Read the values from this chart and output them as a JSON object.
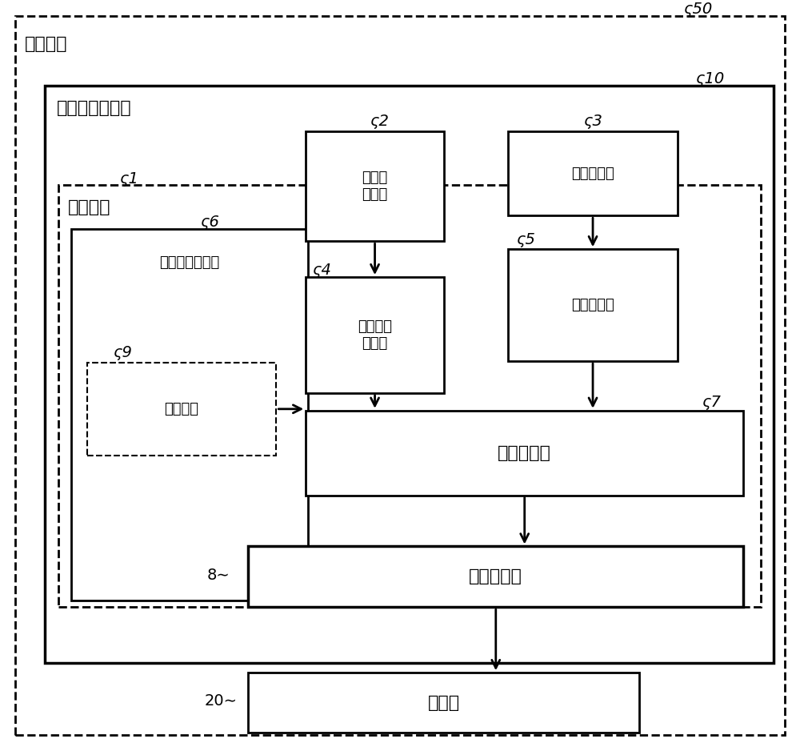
{
  "fig_width": 10.0,
  "fig_height": 9.38,
  "bg_color": "#ffffff",
  "label_印刷基板": "印刷基板",
  "label_电动机控制装置": "电动机控制装置",
  "label_控制电路": "控制电路",
  "label_限制信息存储部": "限制信息存储部",
  "label_限制信息": "限制信息",
  "label_加速度传感器": "加速度\n传感器",
  "label_温度传感器": "温度传感器",
  "label_设置方向计算部": "设置方向\n计算部",
  "label_温度计算部": "温度计算部",
  "label_发热判定部": "发热判定部",
  "label_逆变器电路": "逆变器电路",
  "label_电动机": "电动机",
  "font_size_main": 16,
  "font_size_small": 13,
  "font_size_num": 14,
  "line_color": "#000000",
  "box_facecolor": "#ffffff"
}
